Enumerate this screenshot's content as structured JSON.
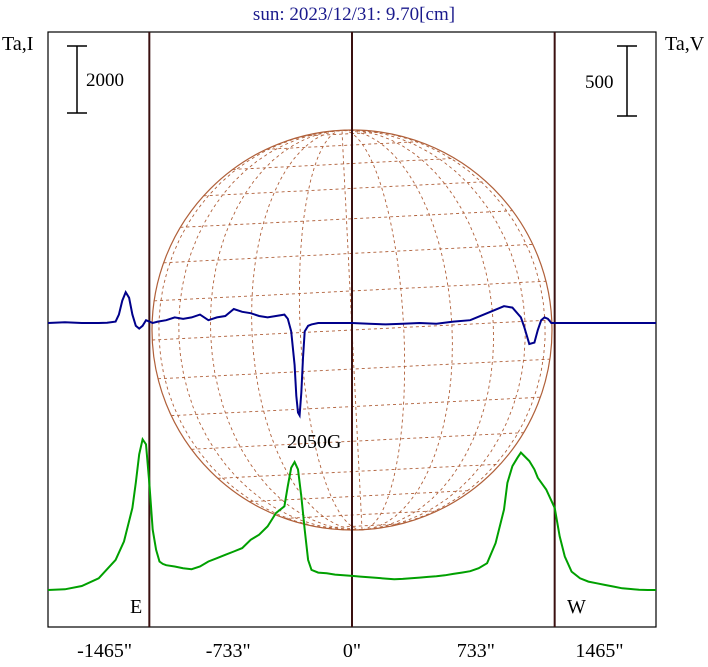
{
  "title": "sun: 2023/12/31: 9.70[cm]",
  "left_axis_label": "Ta,I",
  "right_axis_label": "Ta,V",
  "left_scale_label": "2000",
  "right_scale_label": "500",
  "east_label": "E",
  "west_label": "W",
  "annotation": "2050G",
  "colors": {
    "title": "#1a1a8c",
    "intensity": "#00a000",
    "polarization": "#00008b",
    "disk": "#b0603a",
    "limb_lines": "#3a1010",
    "frame": "#000000"
  },
  "chart_data": {
    "type": "line",
    "x_unit": "arcsec",
    "xlim": [
      -1800,
      1800
    ],
    "xticks": [
      {
        "value": -1465,
        "label": "-1465\""
      },
      {
        "value": -733,
        "label": "-733\""
      },
      {
        "value": 0,
        "label": "0\""
      },
      {
        "value": 733,
        "label": "733\""
      },
      {
        "value": 1465,
        "label": "1465\""
      }
    ],
    "limb_positions": [
      -1200,
      0,
      1200
    ],
    "scale_bars": {
      "intensity": 2000,
      "polarization": 500
    },
    "series": [
      {
        "key": "intensity",
        "axis": "left",
        "x": [
          -1800,
          -1700,
          -1600,
          -1500,
          -1400,
          -1350,
          -1300,
          -1280,
          -1260,
          -1240,
          -1220,
          -1200,
          -1180,
          -1160,
          -1140,
          -1120,
          -1100,
          -1050,
          -1000,
          -950,
          -900,
          -850,
          -800,
          -750,
          -700,
          -650,
          -600,
          -550,
          -500,
          -450,
          -400,
          -380,
          -360,
          -340,
          -320,
          -300,
          -280,
          -260,
          -240,
          -200,
          -150,
          -100,
          -50,
          0,
          50,
          100,
          150,
          200,
          250,
          300,
          350,
          400,
          450,
          500,
          550,
          600,
          650,
          700,
          750,
          800,
          850,
          900,
          920,
          950,
          980,
          1000,
          1020,
          1050,
          1080,
          1100,
          1150,
          1200,
          1230,
          1260,
          1300,
          1350,
          1400,
          1450,
          1500,
          1550,
          1600,
          1650,
          1700,
          1750,
          1800
        ],
        "y": [
          0,
          20,
          120,
          350,
          900,
          1450,
          2450,
          3200,
          4050,
          4500,
          4350,
          3200,
          1800,
          1200,
          850,
          780,
          740,
          700,
          650,
          620,
          700,
          850,
          950,
          1050,
          1150,
          1250,
          1500,
          1650,
          1900,
          2300,
          2500,
          3100,
          3650,
          3820,
          3600,
          2800,
          1800,
          900,
          600,
          520,
          500,
          460,
          440,
          420,
          400,
          380,
          360,
          340,
          320,
          330,
          350,
          370,
          390,
          410,
          440,
          480,
          520,
          560,
          650,
          800,
          1400,
          2400,
          3200,
          3700,
          3950,
          4100,
          4000,
          3850,
          3600,
          3350,
          3000,
          2450,
          1600,
          1000,
          550,
          350,
          250,
          200,
          150,
          100,
          50,
          30,
          10,
          0,
          0
        ],
        "scale_per_100px": 2000
      },
      {
        "key": "polarization",
        "axis": "right",
        "x": [
          -1800,
          -1700,
          -1600,
          -1550,
          -1500,
          -1450,
          -1400,
          -1380,
          -1360,
          -1340,
          -1320,
          -1300,
          -1280,
          -1260,
          -1240,
          -1220,
          -1200,
          -1180,
          -1150,
          -1100,
          -1050,
          -1000,
          -950,
          -900,
          -850,
          -800,
          -750,
          -700,
          -650,
          -600,
          -550,
          -500,
          -450,
          -400,
          -380,
          -360,
          -340,
          -330,
          -320,
          -310,
          -300,
          -290,
          -280,
          -260,
          -240,
          -200,
          -150,
          -100,
          -50,
          0,
          100,
          200,
          300,
          400,
          500,
          600,
          700,
          800,
          900,
          950,
          1000,
          1020,
          1050,
          1080,
          1100,
          1120,
          1140,
          1160,
          1180,
          1200,
          1220,
          1240,
          1260,
          1300,
          1400,
          1500,
          1600,
          1700,
          1800
        ],
        "y": [
          0,
          5,
          0,
          0,
          0,
          2,
          10,
          60,
          160,
          220,
          180,
          60,
          -20,
          -40,
          -20,
          20,
          10,
          0,
          10,
          20,
          40,
          30,
          40,
          60,
          20,
          40,
          50,
          100,
          80,
          70,
          50,
          40,
          50,
          60,
          30,
          -60,
          -300,
          -520,
          -640,
          -660,
          -500,
          -250,
          -60,
          -20,
          -10,
          0,
          0,
          0,
          0,
          0,
          -5,
          -10,
          -5,
          0,
          -5,
          10,
          20,
          70,
          120,
          110,
          40,
          -30,
          -150,
          -140,
          -50,
          20,
          40,
          30,
          0,
          0,
          0,
          0,
          0,
          0,
          0,
          0,
          0,
          0,
          0
        ],
        "scale_per_100px": 500
      }
    ]
  }
}
